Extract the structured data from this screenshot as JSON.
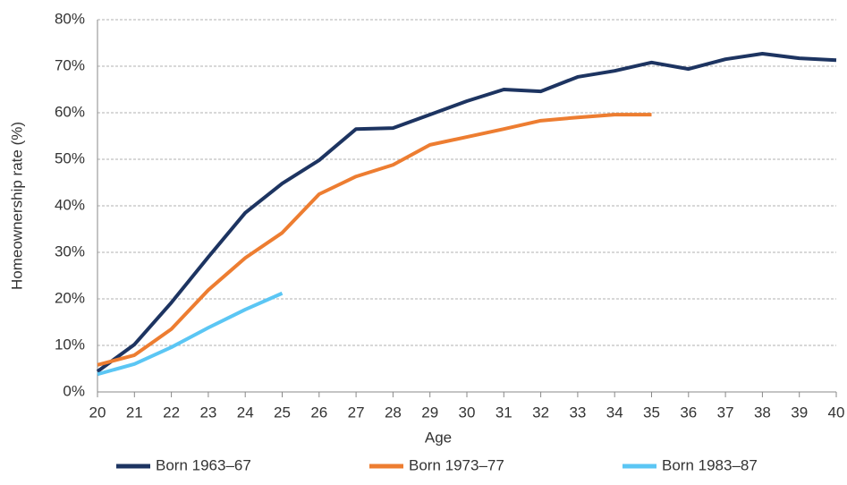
{
  "chart_data": {
    "type": "line",
    "x_label": "Age",
    "y_label": "Homeownership rate (%)",
    "x": [
      20,
      21,
      22,
      23,
      24,
      25,
      26,
      27,
      28,
      29,
      30,
      31,
      32,
      33,
      34,
      35,
      36,
      37,
      38,
      39,
      40
    ],
    "xlim": [
      20,
      40
    ],
    "xticks": [
      20,
      21,
      22,
      23,
      24,
      25,
      26,
      27,
      28,
      29,
      30,
      31,
      32,
      33,
      34,
      35,
      36,
      37,
      38,
      39,
      40
    ],
    "ylim": [
      0,
      80
    ],
    "yticks": [
      {
        "value": 0,
        "label": "0%"
      },
      {
        "value": 10,
        "label": "10%"
      },
      {
        "value": 20,
        "label": "20%"
      },
      {
        "value": 30,
        "label": "30%"
      },
      {
        "value": 40,
        "label": "40%"
      },
      {
        "value": 50,
        "label": "50%"
      },
      {
        "value": 60,
        "label": "60%"
      },
      {
        "value": 70,
        "label": "70%"
      },
      {
        "value": 80,
        "label": "80%"
      }
    ],
    "grid": true,
    "legend": "bottom",
    "series": [
      {
        "name": "Born 1963–67",
        "color": "#1d3461",
        "values": [
          4.4,
          10.2,
          19.2,
          29,
          38.5,
          44.8,
          49.8,
          56.5,
          56.7,
          59.6,
          62.5,
          65,
          64.6,
          67.7,
          69,
          70.8,
          69.4,
          71.5,
          72.7,
          71.7,
          71.3
        ]
      },
      {
        "name": "Born 1973–77",
        "color": "#ed7d31",
        "values": [
          5.8,
          7.9,
          13.5,
          21.9,
          28.8,
          34.2,
          42.5,
          46.3,
          48.8,
          53.1,
          54.8,
          56.5,
          58.3,
          59,
          59.6,
          59.6,
          null,
          null,
          null,
          null,
          null
        ]
      },
      {
        "name": "Born 1983–87",
        "color": "#5bc6f4",
        "values": [
          3.8,
          6,
          9.6,
          13.8,
          17.7,
          21.2,
          null,
          null,
          null,
          null,
          null,
          null,
          null,
          null,
          null,
          null,
          null,
          null,
          null,
          null,
          null
        ]
      }
    ]
  }
}
